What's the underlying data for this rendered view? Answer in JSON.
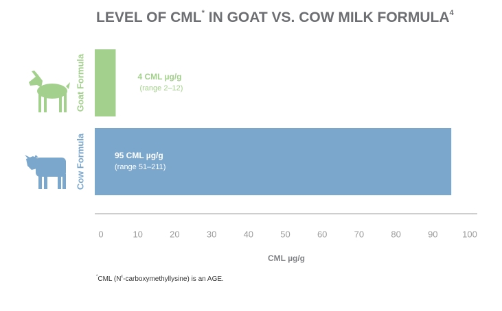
{
  "chart_data": {
    "type": "hbar",
    "title": {
      "main": "LEVEL OF CML",
      "mark": "*",
      "rest": " IN GOAT VS. COW MILK FORMULA",
      "ref": "4"
    },
    "categories": [
      "Goat Formula",
      "Cow Formula"
    ],
    "values": [
      4,
      95
    ],
    "value_labels": [
      "4 CML µg/g",
      "95 CML µg/g"
    ],
    "range_labels": [
      "(range 2–12)",
      "(range 51–211)"
    ],
    "colors": [
      "#a3d08c",
      "#7ba7cd"
    ],
    "xlabel": "CML µg/g",
    "xlim": [
      0,
      100
    ],
    "xticks": [
      0,
      10,
      20,
      30,
      40,
      50,
      60,
      70,
      80,
      90,
      100
    ],
    "footnote": {
      "mark": "*",
      "before": "CML (N",
      "sup": "ε",
      "after": "-carboxymethyllysine) is an AGE."
    }
  }
}
